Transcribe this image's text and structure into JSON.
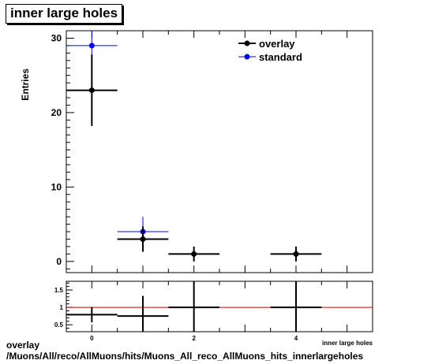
{
  "title": "inner large holes",
  "footer": {
    "line1": "overlay",
    "line2": "/Muons/All/reco/AllMuons/hits/Muons_All_reco_AllMuons_hits_innerlargeholes"
  },
  "chart_data": [
    {
      "type": "scatter",
      "title": "inner large holes",
      "ylabel": "Entries",
      "xlabel": "inner large holes",
      "xlim": [
        -0.5,
        5.5
      ],
      "ylim": [
        -1.5,
        31
      ],
      "xticks": [
        "0",
        "2",
        "4"
      ],
      "yticks": [
        "0",
        "10",
        "20",
        "30"
      ],
      "legend": "top-right",
      "series": [
        {
          "name": "overlay",
          "color": "#000000",
          "points": [
            {
              "x": 0,
              "y": 23,
              "xerr": 0.5,
              "yerr": 4.8
            },
            {
              "x": 1,
              "y": 3,
              "xerr": 0.5,
              "yerr": 1.7
            },
            {
              "x": 2,
              "y": 1,
              "xerr": 0.5,
              "yerr": 1
            },
            {
              "x": 4,
              "y": 1,
              "xerr": 0.5,
              "yerr": 1
            }
          ]
        },
        {
          "name": "standard",
          "color": "#0000ff",
          "points": [
            {
              "x": 0,
              "y": 29,
              "xerr": 0.5,
              "yerr": 5.4
            },
            {
              "x": 1,
              "y": 4,
              "xerr": 0.5,
              "yerr": 2
            }
          ]
        }
      ]
    },
    {
      "type": "line",
      "title": "",
      "ylabel": "",
      "xlabel": "",
      "xlim": [
        -0.5,
        5.5
      ],
      "ylim": [
        0.3,
        1.75
      ],
      "yticks": [
        "0.5",
        "1",
        "1.5"
      ],
      "reference_line": {
        "y": 1,
        "color": "#cc0000"
      },
      "series": [
        {
          "name": "",
          "color": "#000000",
          "points": [
            {
              "x": 0,
              "y": 0.79,
              "xerr": 0.5,
              "yerr": 0.22
            },
            {
              "x": 1,
              "y": 0.75,
              "xerr": 0.5,
              "yerr": 0.58
            },
            {
              "x": 2,
              "y": 1.0,
              "xerr": 0.5,
              "yerr": 1.5
            },
            {
              "x": 4,
              "y": 1.0,
              "xerr": 0.5,
              "yerr": 1.5
            }
          ]
        }
      ]
    }
  ]
}
